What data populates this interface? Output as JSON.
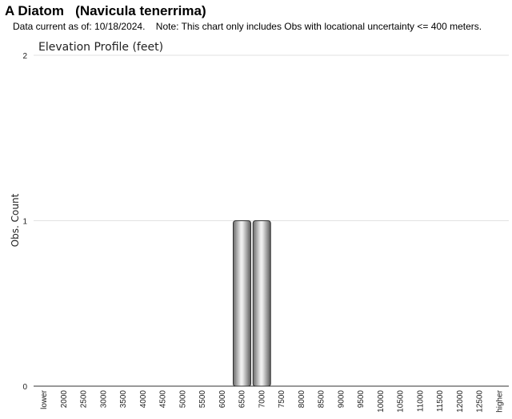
{
  "header": {
    "title": "A Diatom   (Navicula tenerrima)",
    "subtitle": "Data current as of: 10/18/2024.    Note: This chart only includes Obs with locational uncertainty <= 400 meters."
  },
  "chart_data": {
    "type": "bar",
    "title": "Elevation Profile (feet)",
    "xlabel": "",
    "ylabel": "Obs. Count",
    "ylim": [
      0,
      2
    ],
    "yticks": [
      0,
      1,
      2
    ],
    "grid": true,
    "categories": [
      "lower",
      "2000",
      "2500",
      "3000",
      "3500",
      "4000",
      "4500",
      "5000",
      "5500",
      "6000",
      "6500",
      "7000",
      "7500",
      "8000",
      "8500",
      "9000",
      "9500",
      "10000",
      "10500",
      "11000",
      "11500",
      "12000",
      "12500",
      "higher"
    ],
    "values": [
      0,
      0,
      0,
      0,
      0,
      0,
      0,
      0,
      0,
      0,
      1,
      1,
      0,
      0,
      0,
      0,
      0,
      0,
      0,
      0,
      0,
      0,
      0,
      0
    ]
  }
}
